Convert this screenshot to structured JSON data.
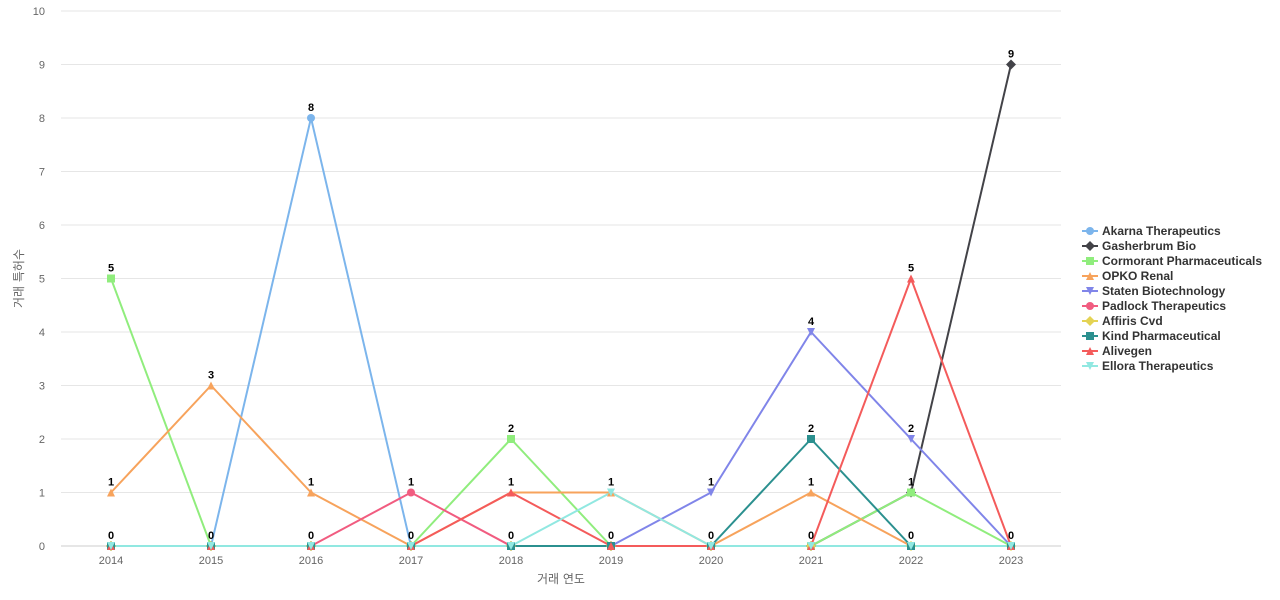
{
  "chart_data": {
    "type": "line",
    "title": "",
    "xlabel": "거래 연도",
    "ylabel": "거래 특허수",
    "x": [
      2014,
      2015,
      2016,
      2017,
      2018,
      2019,
      2020,
      2021,
      2022,
      2023
    ],
    "ylim": [
      0,
      10
    ],
    "yticks": [
      0,
      1,
      2,
      3,
      4,
      5,
      6,
      7,
      8,
      9,
      10
    ],
    "grid": true,
    "legend_position": "right",
    "series": [
      {
        "name": "Akarna Therapeutics",
        "color": "#7cb5ec",
        "marker": "circle",
        "values": [
          0,
          0,
          8,
          0,
          0,
          0,
          0,
          0,
          0,
          0
        ]
      },
      {
        "name": "Gasherbrum Bio",
        "color": "#434348",
        "marker": "diamond",
        "values": [
          0,
          0,
          0,
          0,
          0,
          0,
          0,
          0,
          1,
          9
        ]
      },
      {
        "name": "Cormorant Pharmaceuticals",
        "color": "#90ed7d",
        "marker": "square",
        "values": [
          5,
          0,
          0,
          0,
          2,
          0,
          0,
          0,
          1,
          0
        ]
      },
      {
        "name": "OPKO Renal",
        "color": "#f7a35c",
        "marker": "triangle",
        "values": [
          1,
          3,
          1,
          0,
          1,
          1,
          0,
          1,
          0,
          0
        ]
      },
      {
        "name": "Staten Biotechnology",
        "color": "#8085e9",
        "marker": "triangle-down",
        "values": [
          0,
          0,
          0,
          0,
          0,
          0,
          1,
          4,
          2,
          0
        ]
      },
      {
        "name": "Padlock Therapeutics",
        "color": "#f15c80",
        "marker": "circle",
        "values": [
          0,
          0,
          0,
          1,
          0,
          0,
          0,
          0,
          0,
          0
        ]
      },
      {
        "name": "Affiris Cvd",
        "color": "#e4d354",
        "marker": "diamond",
        "values": [
          0,
          0,
          0,
          0,
          0,
          0,
          0,
          0,
          0,
          0
        ]
      },
      {
        "name": "Kind Pharmaceutical",
        "color": "#2b908f",
        "marker": "square",
        "values": [
          0,
          0,
          0,
          0,
          0,
          0,
          0,
          2,
          0,
          0
        ]
      },
      {
        "name": "Alivegen",
        "color": "#f45b5b",
        "marker": "triangle",
        "values": [
          0,
          0,
          0,
          0,
          1,
          0,
          0,
          0,
          5,
          0
        ]
      },
      {
        "name": "Ellora Therapeutics",
        "color": "#91e8e1",
        "marker": "triangle-down",
        "values": [
          0,
          0,
          0,
          0,
          0,
          1,
          0,
          0,
          0,
          0
        ]
      }
    ],
    "data_labels": [
      {
        "x": 2014,
        "y": 0,
        "text": "0"
      },
      {
        "x": 2014,
        "y": 1,
        "text": "1"
      },
      {
        "x": 2014,
        "y": 5,
        "text": "5"
      },
      {
        "x": 2015,
        "y": 0,
        "text": "0"
      },
      {
        "x": 2015,
        "y": 3,
        "text": "3"
      },
      {
        "x": 2016,
        "y": 0,
        "text": "0"
      },
      {
        "x": 2016,
        "y": 1,
        "text": "1"
      },
      {
        "x": 2016,
        "y": 8,
        "text": "8"
      },
      {
        "x": 2017,
        "y": 0,
        "text": "0"
      },
      {
        "x": 2017,
        "y": 1,
        "text": "1"
      },
      {
        "x": 2018,
        "y": 0,
        "text": "0"
      },
      {
        "x": 2018,
        "y": 1,
        "text": "1"
      },
      {
        "x": 2018,
        "y": 2,
        "text": "2"
      },
      {
        "x": 2019,
        "y": 0,
        "text": "0"
      },
      {
        "x": 2019,
        "y": 1,
        "text": "1"
      },
      {
        "x": 2020,
        "y": 0,
        "text": "0"
      },
      {
        "x": 2020,
        "y": 1,
        "text": "1"
      },
      {
        "x": 2021,
        "y": 0,
        "text": "0"
      },
      {
        "x": 2021,
        "y": 1,
        "text": "1"
      },
      {
        "x": 2021,
        "y": 2,
        "text": "2"
      },
      {
        "x": 2021,
        "y": 4,
        "text": "4"
      },
      {
        "x": 2022,
        "y": 0,
        "text": "0"
      },
      {
        "x": 2022,
        "y": 1,
        "text": "1"
      },
      {
        "x": 2022,
        "y": 2,
        "text": "2"
      },
      {
        "x": 2022,
        "y": 5,
        "text": "5"
      },
      {
        "x": 2023,
        "y": 0,
        "text": "0"
      },
      {
        "x": 2023,
        "y": 9,
        "text": "9"
      }
    ]
  }
}
